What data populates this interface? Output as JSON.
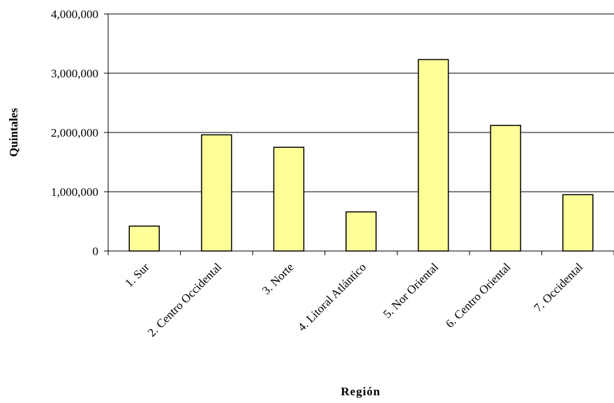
{
  "chart_data": {
    "type": "bar",
    "title": "",
    "xlabel": "Región",
    "ylabel": "Quintales",
    "categories": [
      "1. Sur",
      "2. Centro Occidental",
      "3. Norte",
      "4. Litoral Atlántico",
      "5. Nor Oriental",
      "6. Centro Oriental",
      "7. Occidental"
    ],
    "values": [
      420000,
      1960000,
      1750000,
      660000,
      3230000,
      2120000,
      950000
    ],
    "ylim": [
      0,
      4000000
    ],
    "yticks": [
      0,
      1000000,
      2000000,
      3000000,
      4000000
    ],
    "ytick_labels": [
      "0",
      "1,000,000",
      "2,000,000",
      "3,000,000",
      "4,000,000"
    ],
    "grid": true,
    "legend": "none",
    "colors": {
      "bar_fill": "#ffff99",
      "bar_stroke": "#000000",
      "grid": "#000000",
      "axis": "#000000"
    }
  }
}
